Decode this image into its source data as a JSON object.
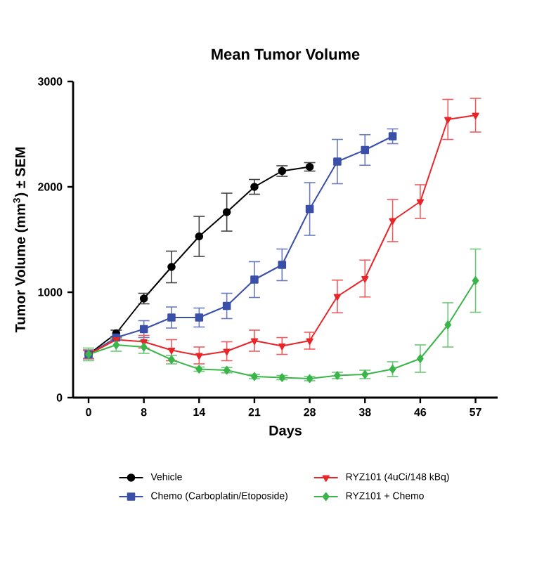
{
  "chart_data": {
    "type": "line",
    "title": "Mean Tumor Volume",
    "xlabel": "Days",
    "ylabel": "Tumor Volume (mm$^{3}$) ± SEM",
    "categories": [
      "0",
      null,
      "8",
      null,
      "14",
      null,
      "21",
      null,
      "28",
      null,
      "38",
      null,
      "46",
      null,
      "57"
    ],
    "ylim": [
      0,
      3000
    ],
    "yticks": [
      0,
      1000,
      2000,
      3000
    ],
    "grid": false,
    "legend": "bottom",
    "series": [
      {
        "name": "Vehicle",
        "color": "#000000",
        "marker": "circle",
        "values": [
          410,
          610,
          940,
          1240,
          1530,
          1760,
          2000,
          2150,
          2190,
          null,
          null,
          null,
          null,
          null,
          null
        ],
        "errors": [
          40,
          30,
          50,
          150,
          190,
          180,
          70,
          50,
          40,
          null,
          null,
          null,
          null,
          null,
          null
        ]
      },
      {
        "name": "Chemo (Carboplatin/Etoposide)",
        "color": "#3a4fa8",
        "marker": "square",
        "values": [
          410,
          570,
          650,
          760,
          760,
          870,
          1120,
          1260,
          1790,
          2240,
          2350,
          2480,
          null,
          null,
          null
        ],
        "errors": [
          40,
          null,
          80,
          100,
          90,
          120,
          170,
          150,
          250,
          210,
          145,
          70,
          null,
          null,
          null
        ]
      },
      {
        "name": "RYZ101 (4uCi/148 kBq)",
        "color": "#e8262a",
        "marker": "triangle",
        "values": [
          410,
          550,
          530,
          450,
          400,
          440,
          540,
          490,
          540,
          960,
          1130,
          1680,
          1860,
          2640,
          2680
        ],
        "errors": [
          40,
          null,
          60,
          100,
          80,
          90,
          100,
          80,
          80,
          155,
          175,
          200,
          160,
          190,
          160
        ]
      },
      {
        "name": "RYZ101 + Chemo",
        "color": "#3ab54a",
        "marker": "diamond",
        "values": [
          410,
          500,
          480,
          360,
          270,
          260,
          200,
          190,
          180,
          210,
          220,
          270,
          370,
          690,
          1110
        ],
        "errors": [
          60,
          60,
          60,
          40,
          20,
          25,
          20,
          20,
          20,
          30,
          40,
          70,
          130,
          210,
          300
        ]
      }
    ]
  }
}
